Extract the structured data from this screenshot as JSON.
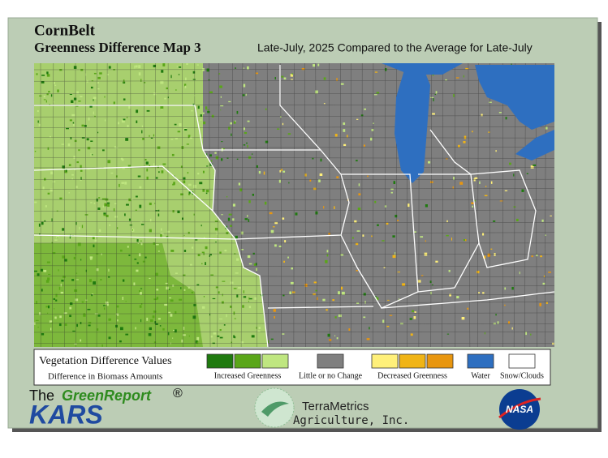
{
  "header": {
    "title": "CornBelt",
    "subtitle": "Greenness Difference Map 3",
    "period": "Late-July, 2025 Compared to the Average for Late-July"
  },
  "legend": {
    "title": "Vegetation Difference Values",
    "subtitle": "Difference in Biomass Amounts",
    "groups": [
      {
        "label": "Increased Greenness",
        "colors": [
          "#1f7a0f",
          "#5aa619",
          "#bfe680"
        ]
      },
      {
        "label": "Little or no Change",
        "colors": [
          "#7f7f7f"
        ]
      },
      {
        "label": "Decreased Greenness",
        "colors": [
          "#fff07a",
          "#f0b416",
          "#e8960f"
        ]
      },
      {
        "label": "Water",
        "colors": [
          "#2e6fc0"
        ]
      },
      {
        "label": "Snow/Clouds",
        "colors": [
          "#ffffff"
        ]
      }
    ]
  },
  "footer": {
    "brand_prefix": "The",
    "brand": "GreenReport",
    "registered": "®",
    "org": "KARS",
    "partner_line1": "TerraMetrics",
    "partner_line2": "Agriculture, Inc.",
    "agency": "NASA"
  }
}
